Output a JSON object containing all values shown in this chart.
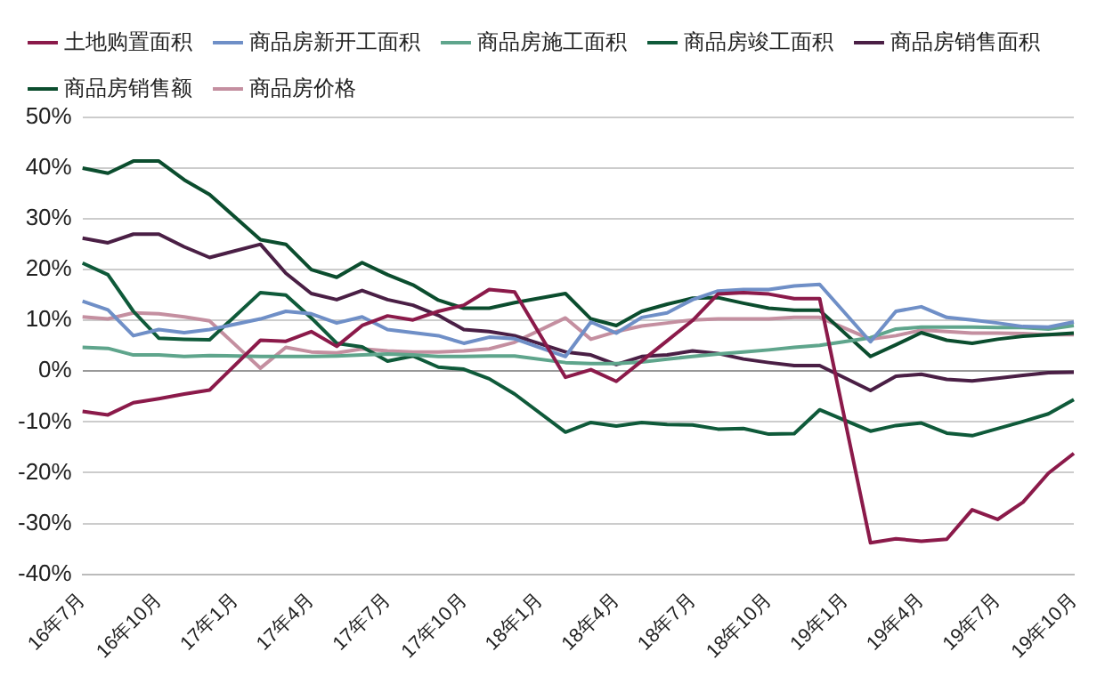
{
  "chart_data": {
    "type": "line",
    "categories": [
      "16年7月",
      null,
      null,
      "16年10月",
      null,
      null,
      "17年1月",
      null,
      null,
      "17年4月",
      null,
      null,
      "17年7月",
      null,
      null,
      "17年10月",
      null,
      null,
      "18年1月",
      null,
      null,
      "18年4月",
      null,
      null,
      "18年7月",
      null,
      null,
      "18年10月",
      null,
      null,
      "19年1月",
      null,
      null,
      "19年4月",
      null,
      null,
      "19年7月",
      null,
      null,
      "19年10月"
    ],
    "series": [
      {
        "name": "土地购置面积",
        "color": "#8b1a4a",
        "values": [
          -7.9,
          -8.6,
          -6.2,
          -5.4,
          -4.5,
          -3.7,
          null,
          6.1,
          5.9,
          7.8,
          4.9,
          9,
          10.9,
          10.1,
          11.8,
          13,
          16.1,
          15.6,
          null,
          -1.2,
          0.3,
          -2,
          2,
          6,
          10,
          15.2,
          15.5,
          15.2,
          14.3,
          14.3,
          null,
          -33.8,
          -33,
          -33.5,
          -33.1,
          -27.3,
          -29.2,
          -25.8,
          -20.1,
          -16.2
        ]
      },
      {
        "name": "商品房新开工面积",
        "color": "#6f8fc7",
        "values": [
          13.8,
          12.1,
          7,
          8.2,
          7.6,
          8.2,
          null,
          10.3,
          11.8,
          11.3,
          9.5,
          10.7,
          8.2,
          7.6,
          7,
          5.5,
          6.7,
          6.4,
          null,
          2.9,
          9.7,
          7.5,
          10.6,
          11.5,
          14.1,
          15.8,
          16.1,
          16.1,
          16.8,
          17.1,
          null,
          5.8,
          11.8,
          12.7,
          10.6,
          10.1,
          9.5,
          8.8,
          8.7,
          9.7
        ]
      },
      {
        "name": "商品房施工面积",
        "color": "#5fa58c",
        "values": [
          4.7,
          4.5,
          3.2,
          3.2,
          2.9,
          3.1,
          null,
          2.9,
          2.9,
          2.9,
          3,
          3.2,
          3.4,
          3.2,
          2.9,
          2.9,
          3,
          3,
          null,
          1.7,
          1.5,
          1.5,
          1.8,
          2.4,
          2.9,
          3.4,
          3.8,
          4.2,
          4.7,
          5.1,
          null,
          6.6,
          8.3,
          8.7,
          8.7,
          8.7,
          8.6,
          8.6,
          8.3,
          9
        ]
      },
      {
        "name": "商品房竣工面积",
        "color": "#0f5a3a",
        "values": [
          21.3,
          19,
          11.8,
          6.5,
          6.3,
          6.2,
          null,
          15.5,
          15,
          10.5,
          5.5,
          4.8,
          2,
          3,
          0.8,
          0.4,
          -1.5,
          -4.5,
          null,
          -12,
          -10.1,
          -10.8,
          -10.1,
          -10.5,
          -10.6,
          -11.4,
          -11.3,
          -12.4,
          -12.3,
          -7.6,
          null,
          -11.8,
          -10.7,
          -10.2,
          -12.2,
          -12.7,
          -11.3,
          -9.9,
          -8.4,
          -5.6
        ]
      },
      {
        "name": "商品房销售面积",
        "color": "#4a1f45",
        "values": [
          26.2,
          25.3,
          27,
          27,
          24.5,
          22.4,
          null,
          25,
          19.3,
          15.3,
          14.1,
          15.9,
          14.1,
          13,
          11,
          8.2,
          7.8,
          7,
          null,
          3.8,
          3.2,
          1.3,
          2.9,
          3.2,
          4,
          3.5,
          2.4,
          1.7,
          1.1,
          1.1,
          null,
          -3.8,
          -1,
          -0.6,
          -1.6,
          -1.9,
          -1.4,
          -0.8,
          -0.3,
          -0.2
        ]
      },
      {
        "name": "商品房销售额",
        "color": "#0b4d2e",
        "values": [
          40,
          39,
          41.4,
          41.4,
          37.7,
          34.8,
          null,
          25.9,
          25,
          20,
          18.5,
          21.4,
          19,
          17,
          14,
          12.4,
          12.4,
          13.5,
          null,
          15.3,
          10.3,
          9,
          11.8,
          13.2,
          14.4,
          14.5,
          13.4,
          12.4,
          12,
          12,
          null,
          2.9,
          5.2,
          7.6,
          6.1,
          5.5,
          6.3,
          6.9,
          7.2,
          7.5
        ]
      },
      {
        "name": "商品房价格",
        "color": "#c48fa0",
        "values": [
          10.7,
          10.3,
          11.5,
          11.3,
          10.7,
          9.9,
          null,
          0.6,
          4.7,
          3.8,
          3.6,
          4.4,
          4,
          3.8,
          3.8,
          4,
          4.4,
          5.7,
          null,
          10.5,
          6.3,
          7.8,
          8.9,
          9.5,
          10.1,
          10.3,
          10.3,
          10.3,
          10.6,
          10.6,
          null,
          6.3,
          7,
          8.1,
          7.8,
          7.5,
          7.5,
          7.4,
          7.2,
          7.2
        ]
      }
    ],
    "ylim": [
      -40,
      50
    ],
    "yticks": [
      {
        "value": -40,
        "label": "-40%"
      },
      {
        "value": -30,
        "label": "-30%"
      },
      {
        "value": -20,
        "label": "-20%"
      },
      {
        "value": -10,
        "label": "-10%"
      },
      {
        "value": 0,
        "label": "0%"
      },
      {
        "value": 10,
        "label": "10%"
      },
      {
        "value": 20,
        "label": "20%"
      },
      {
        "value": 30,
        "label": "30%"
      },
      {
        "value": 40,
        "label": "40%"
      },
      {
        "value": 50,
        "label": "50%"
      }
    ],
    "grid": "y",
    "legend": "top",
    "marker": "none",
    "line_style": "solid"
  }
}
